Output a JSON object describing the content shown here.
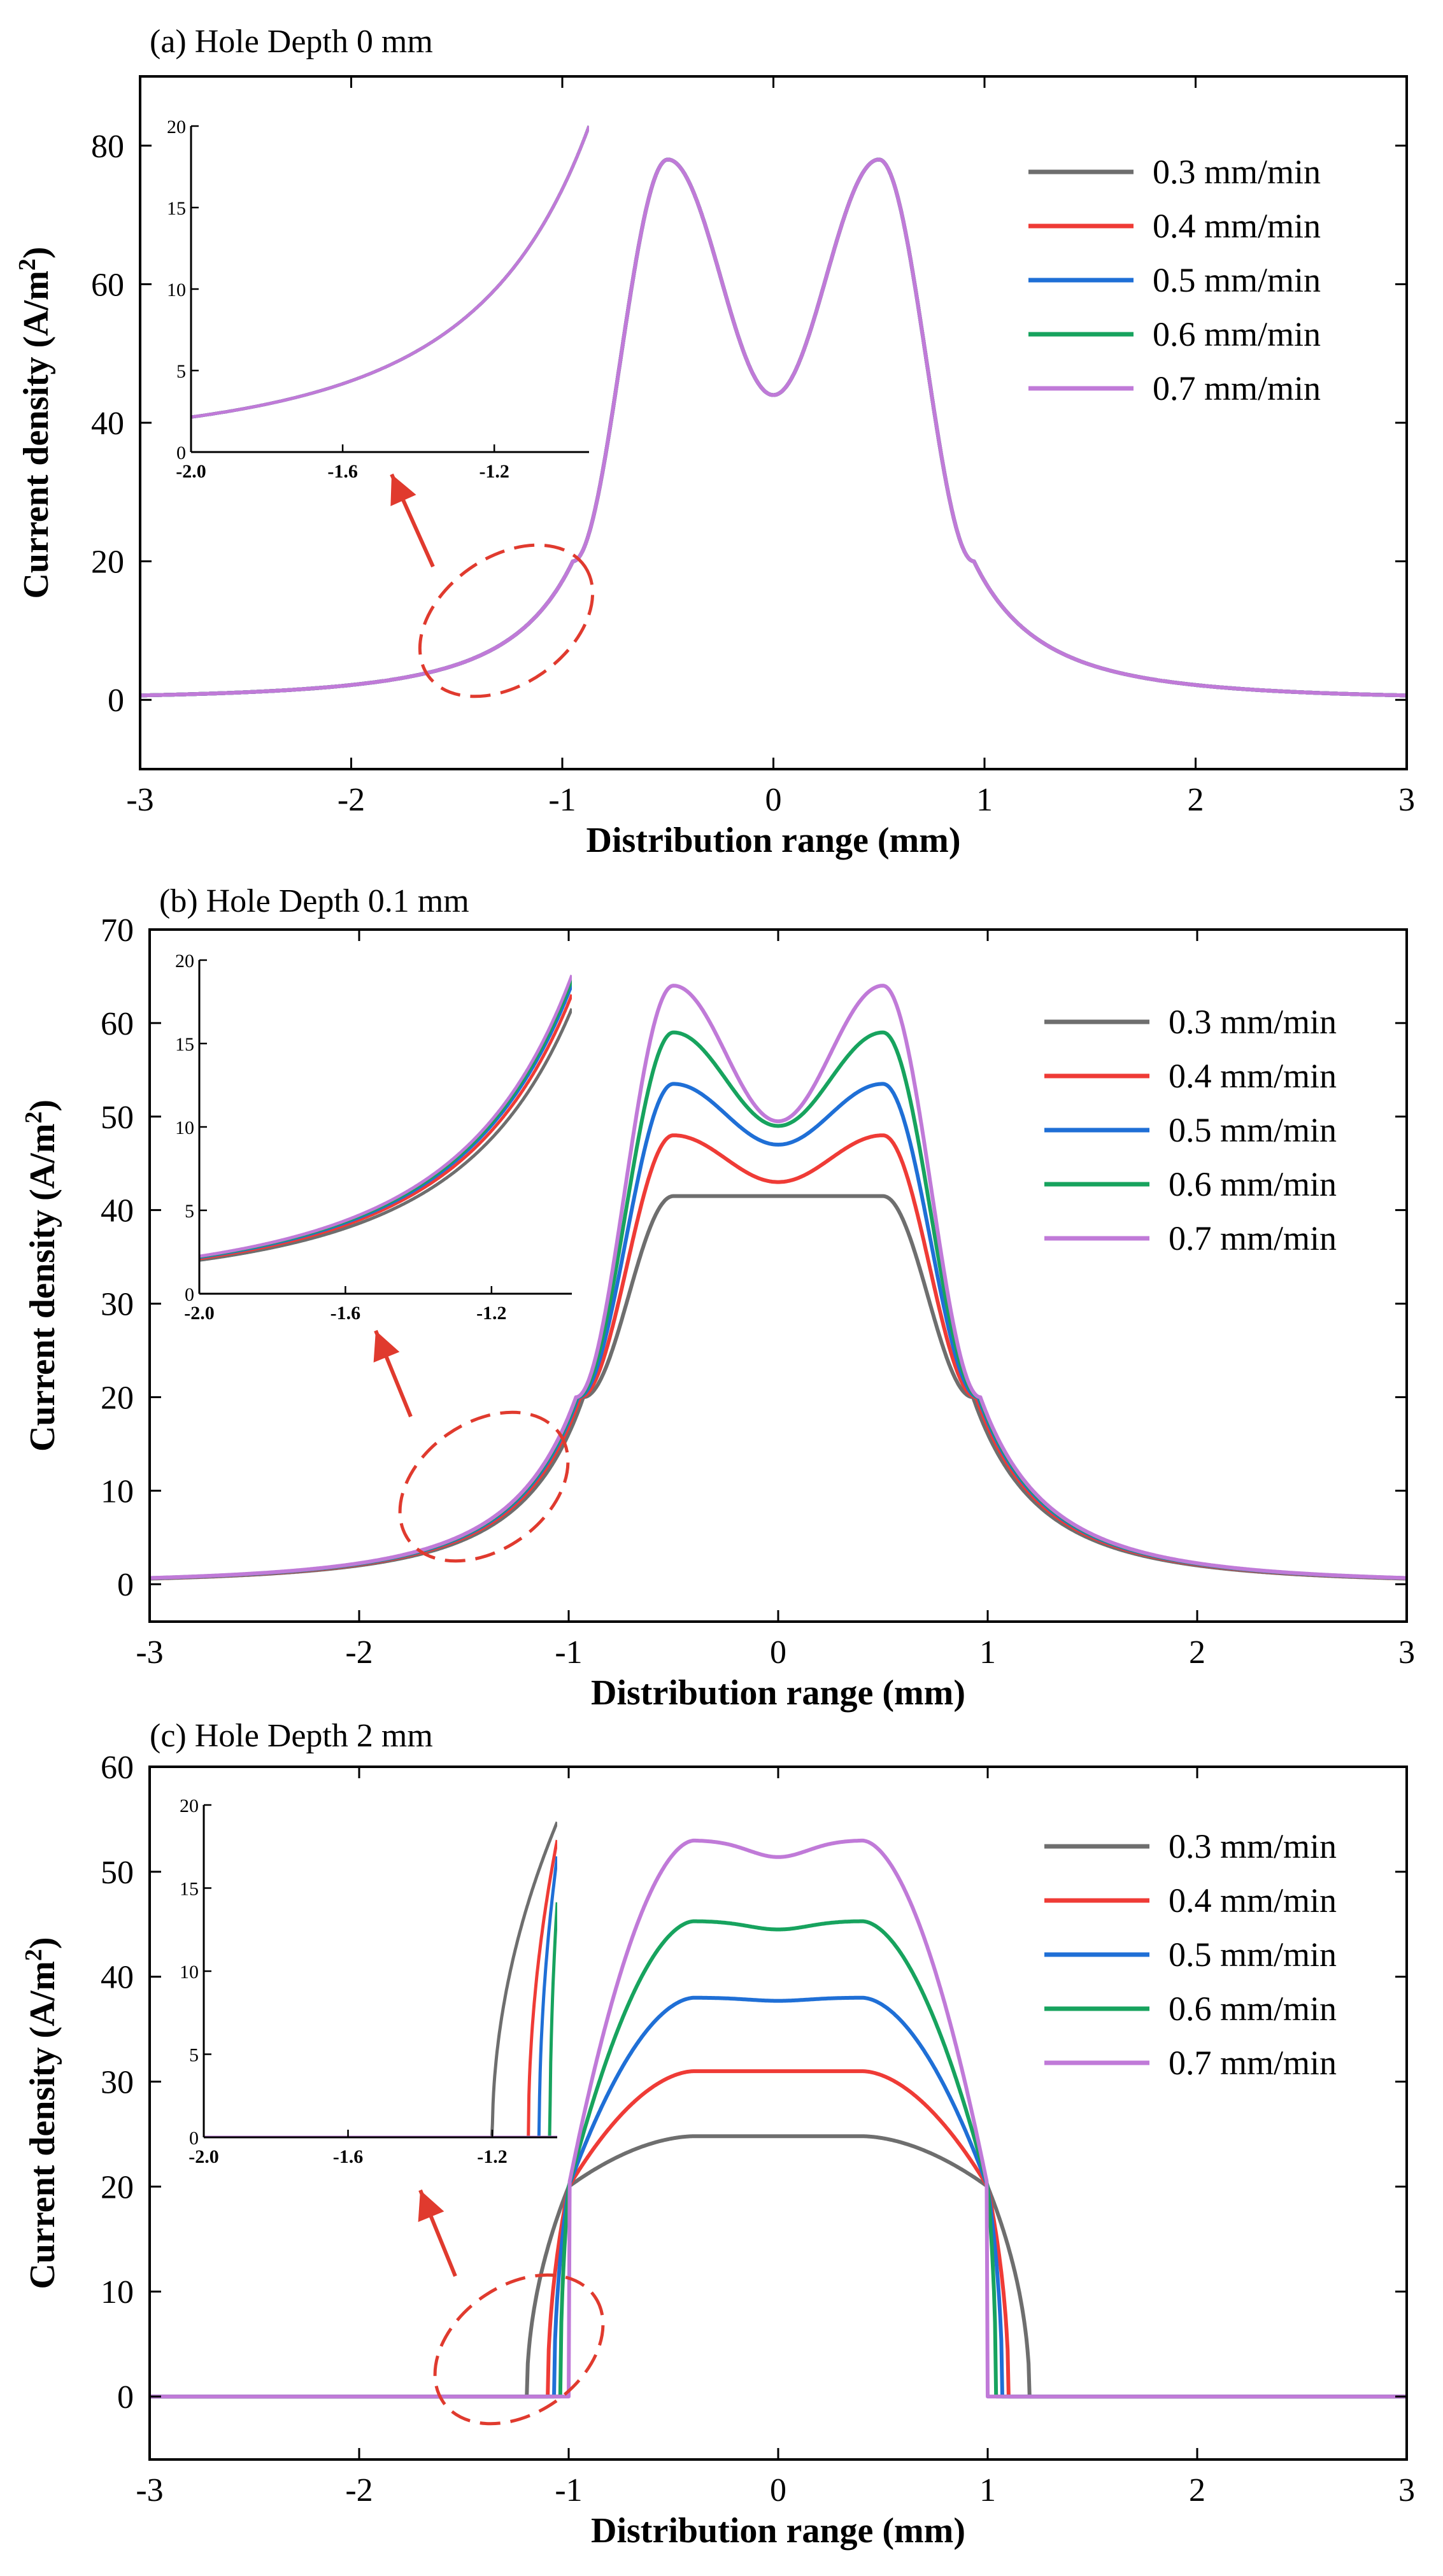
{
  "figure_type": "three stacked line charts with insets",
  "legend_unit": " mm/min",
  "colors": {
    "0.3": "#6e6e6e",
    "0.4": "#ef3b36",
    "0.5": "#1f6fd6",
    "0.6": "#17a35e",
    "0.7": "#c07ad8",
    "annotation": "#e03a2e"
  },
  "chart_data": [
    {
      "type": "line",
      "title": "(a) Hole Depth 0 mm",
      "xlabel": "Distribution range (mm)",
      "ylabel": "Current density (A/m2)",
      "xlim": [
        -3,
        3
      ],
      "ylim": [
        -10,
        90
      ],
      "xticks": [
        -3,
        -2,
        -1,
        0,
        1,
        2,
        3
      ],
      "yticks": [
        0,
        20,
        40,
        60,
        80
      ],
      "legend": [
        "0.3 mm/min",
        "0.4 mm/min",
        "0.5 mm/min",
        "0.6 mm/min",
        "0.7 mm/min"
      ],
      "legend_position": "top-right",
      "model": {
        "kind": "double_peak",
        "series": [
          {
            "name": "0.3 mm/min",
            "peak": 78,
            "center": 44,
            "peak_x": 0.5,
            "flank_x": 0.95
          },
          {
            "name": "0.4 mm/min",
            "peak": 78,
            "center": 44,
            "peak_x": 0.5,
            "flank_x": 0.95
          },
          {
            "name": "0.5 mm/min",
            "peak": 78,
            "center": 44,
            "peak_x": 0.5,
            "flank_x": 0.95
          },
          {
            "name": "0.6 mm/min",
            "peak": 78,
            "center": 44,
            "peak_x": 0.5,
            "flank_x": 0.95
          },
          {
            "name": "0.7 mm/min",
            "peak": 78,
            "center": 44,
            "peak_x": 0.5,
            "flank_x": 0.95
          }
        ]
      },
      "inset": {
        "xlim": [
          -2.0,
          -0.95
        ],
        "ylim": [
          0,
          20
        ],
        "xticks": [
          -2.0,
          -1.6,
          -1.2
        ],
        "xtick_labels": [
          "-2.0",
          "-1.6",
          "-1.2"
        ],
        "yticks": [
          0,
          5,
          10,
          15,
          20
        ]
      }
    },
    {
      "type": "line",
      "title": "(b) Hole Depth 0.1 mm",
      "xlabel": "Distribution range (mm)",
      "ylabel": "Current density (A/m2)",
      "xlim": [
        -3,
        3
      ],
      "ylim": [
        -4,
        70
      ],
      "xticks": [
        -3,
        -2,
        -1,
        0,
        1,
        2,
        3
      ],
      "yticks": [
        0,
        10,
        20,
        30,
        40,
        50,
        60,
        70
      ],
      "legend": [
        "0.3 mm/min",
        "0.4 mm/min",
        "0.5 mm/min",
        "0.6 mm/min",
        "0.7 mm/min"
      ],
      "legend_position": "top-right",
      "model": {
        "kind": "double_peak",
        "series": [
          {
            "name": "0.3 mm/min",
            "peak": 41.5,
            "center": 41.5,
            "peak_x": 0.5,
            "flank_x": 0.93
          },
          {
            "name": "0.4 mm/min",
            "peak": 48,
            "center": 43,
            "peak_x": 0.5,
            "flank_x": 0.945
          },
          {
            "name": "0.5 mm/min",
            "peak": 53.5,
            "center": 47,
            "peak_x": 0.5,
            "flank_x": 0.955
          },
          {
            "name": "0.6 mm/min",
            "peak": 59,
            "center": 49,
            "peak_x": 0.5,
            "flank_x": 0.96
          },
          {
            "name": "0.7 mm/min",
            "peak": 64,
            "center": 49.5,
            "peak_x": 0.5,
            "flank_x": 0.965
          }
        ]
      },
      "inset": {
        "xlim": [
          -2.0,
          -0.98
        ],
        "ylim": [
          0,
          20
        ],
        "xticks": [
          -2.0,
          -1.6,
          -1.2
        ],
        "xtick_labels": [
          "-2.0",
          "-1.6",
          "-1.2"
        ],
        "yticks": [
          0,
          5,
          10,
          15,
          20
        ]
      }
    },
    {
      "type": "line",
      "title": "(c) Hole Depth 2 mm",
      "xlabel": "Distribution range (mm)",
      "ylabel": "Current density (A/m2)",
      "xlim": [
        -3,
        3
      ],
      "ylim": [
        -6,
        60
      ],
      "xticks": [
        -3,
        -2,
        -1,
        0,
        1,
        2,
        3
      ],
      "yticks": [
        0,
        10,
        20,
        30,
        40,
        50,
        60
      ],
      "legend": [
        "0.3 mm/min",
        "0.4 mm/min",
        "0.5 mm/min",
        "0.6 mm/min",
        "0.7 mm/min"
      ],
      "legend_position": "top-right",
      "model": {
        "kind": "plateau",
        "series": [
          {
            "name": "0.3 mm/min",
            "plateau": 24.8,
            "edge_x": 1.2,
            "dip": 0,
            "cross_x": 1.0
          },
          {
            "name": "0.4 mm/min",
            "plateau": 31,
            "edge_x": 1.1,
            "dip": 0,
            "cross_x": 1.0
          },
          {
            "name": "0.5 mm/min",
            "plateau": 38,
            "edge_x": 1.07,
            "dip": 0.3,
            "cross_x": 1.0
          },
          {
            "name": "0.6 mm/min",
            "plateau": 45.3,
            "edge_x": 1.04,
            "dip": 0.8,
            "cross_x": 1.0
          },
          {
            "name": "0.7 mm/min",
            "plateau": 53,
            "edge_x": 1.0,
            "dip": 1.6,
            "cross_x": 1.0
          }
        ]
      },
      "inset": {
        "xlim": [
          -2.0,
          -1.02
        ],
        "ylim": [
          0,
          20
        ],
        "xticks": [
          -2.0,
          -1.6,
          -1.2
        ],
        "xtick_labels": [
          "-2.0",
          "-1.6",
          "-1.2"
        ],
        "yticks": [
          0,
          5,
          10,
          15,
          20
        ]
      }
    }
  ]
}
